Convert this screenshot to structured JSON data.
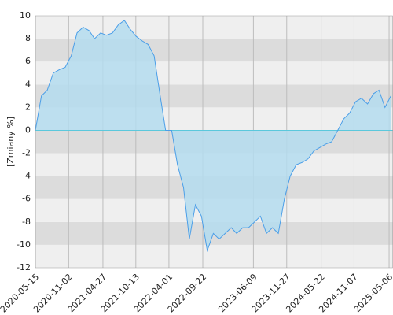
{
  "chart_data": {
    "type": "area",
    "y_label": "[Zmiany %]",
    "x": [
      "2020-05-15",
      "2020-06-15",
      "2020-07-15",
      "2020-08-15",
      "2020-09-15",
      "2020-10-15",
      "2020-11-15",
      "2020-12-15",
      "2021-01-15",
      "2021-02-15",
      "2021-03-15",
      "2021-04-15",
      "2021-05-15",
      "2021-06-15",
      "2021-07-15",
      "2021-08-15",
      "2021-09-15",
      "2021-10-15",
      "2021-11-15",
      "2021-12-15",
      "2022-01-15",
      "2022-02-15",
      "2022-03-15",
      "2022-04-15",
      "2022-05-15",
      "2022-06-15",
      "2022-07-15",
      "2022-08-15",
      "2022-09-15",
      "2022-10-15",
      "2022-11-15",
      "2022-12-15",
      "2023-01-15",
      "2023-02-15",
      "2023-03-15",
      "2023-04-15",
      "2023-05-15",
      "2023-06-15",
      "2023-07-15",
      "2023-08-15",
      "2023-09-15",
      "2023-10-15",
      "2023-11-15",
      "2023-12-15",
      "2024-01-15",
      "2024-02-15",
      "2024-03-15",
      "2024-04-15",
      "2024-05-15",
      "2024-06-15",
      "2024-07-15",
      "2024-08-15",
      "2024-09-15",
      "2024-10-15",
      "2024-11-15",
      "2024-12-15",
      "2025-01-15",
      "2025-02-15",
      "2025-03-15",
      "2025-04-15",
      "2025-05-15"
    ],
    "values": [
      0,
      3,
      3.5,
      5,
      5.3,
      5.5,
      6.5,
      8.5,
      9,
      8.7,
      8,
      8.5,
      8.3,
      8.5,
      9.2,
      9.6,
      8.8,
      8.2,
      7.8,
      7.5,
      6.5,
      3,
      0,
      0,
      -3,
      -5,
      -9.5,
      -6.5,
      -7.5,
      -10.5,
      -9,
      -9.5,
      -9,
      -8.5,
      -9,
      -8.5,
      -8.5,
      -8,
      -7.5,
      -9,
      -8.5,
      -9,
      -6,
      -4,
      -3,
      -2.8,
      -2.5,
      -1.8,
      -1.5,
      -1.2,
      -1,
      0,
      1,
      1.5,
      2.5,
      2.8,
      2.3,
      3.2,
      3.5,
      2,
      3
    ],
    "color": "#4a9ee8",
    "fill_color": "#b4dcee",
    "zero_line_color": "#5bc8dc",
    "xlim": [
      "2020-05-15",
      "2025-05-26"
    ],
    "xticks": [
      "2020-05-15",
      "2020-11-02",
      "2021-04-27",
      "2021-10-13",
      "2022-04-01",
      "2022-09-22",
      "2023-06-09",
      "2023-11-27",
      "2024-05-22",
      "2024-11-07",
      "2025-05-06"
    ],
    "ylim": [
      -12,
      10
    ],
    "yticks": [
      -12,
      -10,
      -8,
      -6,
      -4,
      -2,
      0,
      2,
      4,
      6,
      8,
      10
    ],
    "grid": true
  }
}
